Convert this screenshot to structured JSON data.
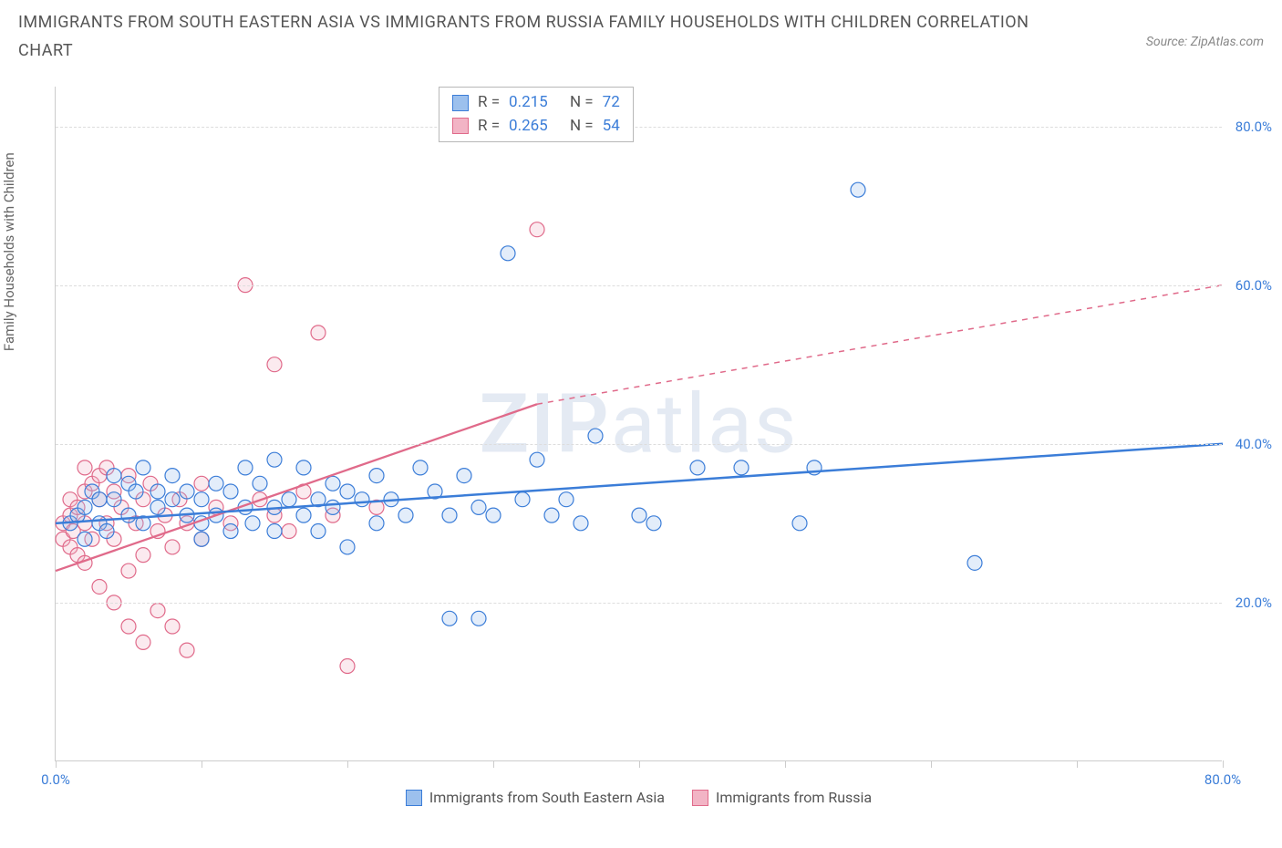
{
  "title": "IMMIGRANTS FROM SOUTH EASTERN ASIA VS IMMIGRANTS FROM RUSSIA FAMILY HOUSEHOLDS WITH CHILDREN CORRELATION CHART",
  "source": "Source: ZipAtlas.com",
  "watermark_a": "ZIP",
  "watermark_b": "atlas",
  "y_axis_label": "Family Households with Children",
  "chart": {
    "type": "scatter",
    "xlim": [
      0,
      80
    ],
    "ylim": [
      0,
      85
    ],
    "x_ticks": [
      0,
      10,
      20,
      30,
      40,
      50,
      60,
      70,
      80
    ],
    "y_grid": [
      20,
      40,
      60,
      80
    ],
    "x_labels_shown": {
      "0": "0.0%",
      "80": "80.0%"
    },
    "y_labels_shown": {
      "20": "20.0%",
      "40": "40.0%",
      "60": "60.0%",
      "80": "80.0%"
    },
    "background_color": "#ffffff",
    "grid_color": "#dddddd",
    "axis_color": "#cccccc",
    "tick_label_color": "#3b7dd8",
    "marker_radius": 8,
    "marker_stroke_width": 1.2,
    "marker_fill_opacity": 0.28
  },
  "series": [
    {
      "id": "sea",
      "name": "Immigrants from South Eastern Asia",
      "color": "#3b7dd8",
      "fill": "#9cc0ed",
      "R_label": "R =",
      "R": "0.215",
      "N_label": "N =",
      "N": "72",
      "trend": {
        "x1": 0,
        "y1": 30,
        "x2": 80,
        "y2": 40,
        "dash": "none",
        "width": 2.5
      },
      "points": [
        [
          1,
          30
        ],
        [
          1.5,
          31
        ],
        [
          2,
          32
        ],
        [
          2,
          28
        ],
        [
          2.5,
          34
        ],
        [
          3,
          30
        ],
        [
          3,
          33
        ],
        [
          3.5,
          29
        ],
        [
          4,
          33
        ],
        [
          4,
          36
        ],
        [
          5,
          31
        ],
        [
          5,
          35
        ],
        [
          5.5,
          34
        ],
        [
          6,
          30
        ],
        [
          6,
          37
        ],
        [
          7,
          32
        ],
        [
          7,
          34
        ],
        [
          8,
          33
        ],
        [
          8,
          36
        ],
        [
          9,
          31
        ],
        [
          9,
          34
        ],
        [
          10,
          33
        ],
        [
          10,
          30
        ],
        [
          11,
          35
        ],
        [
          11,
          31
        ],
        [
          12,
          34
        ],
        [
          13,
          37
        ],
        [
          13,
          32
        ],
        [
          13.5,
          30
        ],
        [
          14,
          35
        ],
        [
          15,
          38
        ],
        [
          15,
          32
        ],
        [
          15,
          29
        ],
        [
          16,
          33
        ],
        [
          17,
          31
        ],
        [
          17,
          37
        ],
        [
          18,
          33
        ],
        [
          18,
          29
        ],
        [
          19,
          32
        ],
        [
          19,
          35
        ],
        [
          20,
          34
        ],
        [
          20,
          27
        ],
        [
          21,
          33
        ],
        [
          22,
          36
        ],
        [
          22,
          30
        ],
        [
          23,
          33
        ],
        [
          24,
          31
        ],
        [
          25,
          37
        ],
        [
          26,
          34
        ],
        [
          27,
          31
        ],
        [
          27,
          18
        ],
        [
          28,
          36
        ],
        [
          29,
          18
        ],
        [
          29,
          32
        ],
        [
          30,
          31
        ],
        [
          31,
          64
        ],
        [
          32,
          33
        ],
        [
          33,
          38
        ],
        [
          34,
          31
        ],
        [
          35,
          33
        ],
        [
          36,
          30
        ],
        [
          37,
          41
        ],
        [
          40,
          31
        ],
        [
          41,
          30
        ],
        [
          44,
          37
        ],
        [
          47,
          37
        ],
        [
          51,
          30
        ],
        [
          52,
          37
        ],
        [
          55,
          72
        ],
        [
          63,
          25
        ],
        [
          10,
          28
        ],
        [
          12,
          29
        ]
      ]
    },
    {
      "id": "russia",
      "name": "Immigrants from Russia",
      "color": "#e06a8a",
      "fill": "#f2b4c5",
      "R_label": "R =",
      "R": "0.265",
      "N_label": "N =",
      "N": "54",
      "trend_solid": {
        "x1": 0,
        "y1": 24,
        "x2": 33,
        "y2": 45,
        "width": 2.3
      },
      "trend_dashed": {
        "x1": 33,
        "y1": 45,
        "x2": 80,
        "y2": 60,
        "width": 1.5
      },
      "points": [
        [
          0.5,
          28
        ],
        [
          0.5,
          30
        ],
        [
          1,
          27
        ],
        [
          1,
          31
        ],
        [
          1,
          33
        ],
        [
          1.2,
          29
        ],
        [
          1.5,
          26
        ],
        [
          1.5,
          32
        ],
        [
          2,
          34
        ],
        [
          2,
          37
        ],
        [
          2,
          30
        ],
        [
          2,
          25
        ],
        [
          2.5,
          28
        ],
        [
          2.5,
          35
        ],
        [
          3,
          33
        ],
        [
          3,
          36
        ],
        [
          3,
          22
        ],
        [
          3.5,
          30
        ],
        [
          3.5,
          37
        ],
        [
          4,
          34
        ],
        [
          4,
          28
        ],
        [
          4,
          20
        ],
        [
          4.5,
          32
        ],
        [
          5,
          36
        ],
        [
          5,
          24
        ],
        [
          5,
          17
        ],
        [
          5.5,
          30
        ],
        [
          6,
          33
        ],
        [
          6,
          26
        ],
        [
          6,
          15
        ],
        [
          6.5,
          35
        ],
        [
          7,
          29
        ],
        [
          7,
          19
        ],
        [
          7.5,
          31
        ],
        [
          8,
          27
        ],
        [
          8,
          17
        ],
        [
          8.5,
          33
        ],
        [
          9,
          30
        ],
        [
          9,
          14
        ],
        [
          10,
          28
        ],
        [
          10,
          35
        ],
        [
          11,
          32
        ],
        [
          12,
          30
        ],
        [
          13,
          60
        ],
        [
          14,
          33
        ],
        [
          15,
          31
        ],
        [
          15,
          50
        ],
        [
          16,
          29
        ],
        [
          17,
          34
        ],
        [
          18,
          54
        ],
        [
          19,
          31
        ],
        [
          20,
          12
        ],
        [
          33,
          67
        ],
        [
          22,
          32
        ]
      ]
    }
  ],
  "bottom_legend": [
    {
      "swatch_fill": "#9cc0ed",
      "swatch_stroke": "#3b7dd8",
      "label": "Immigrants from South Eastern Asia"
    },
    {
      "swatch_fill": "#f2b4c5",
      "swatch_stroke": "#e06a8a",
      "label": "Immigrants from Russia"
    }
  ]
}
